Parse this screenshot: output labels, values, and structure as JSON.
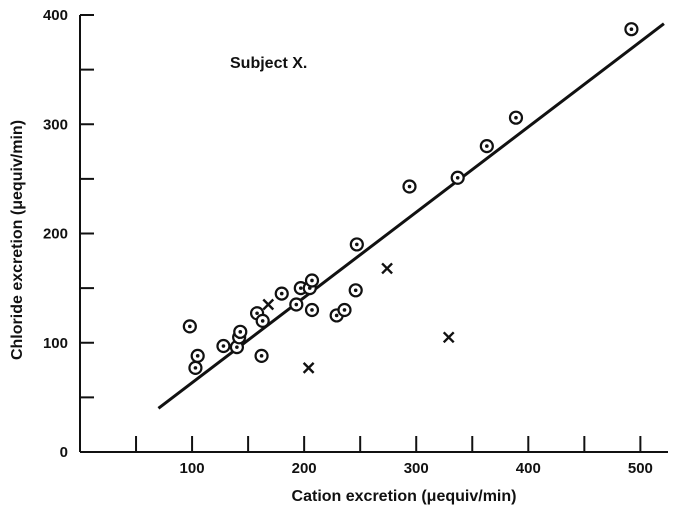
{
  "chart_data": {
    "type": "scatter",
    "title": "",
    "xlabel": "Cation excretion (μequiv/min)",
    "ylabel": "Chloride excretion (μequiv/min)",
    "annotation": "Subject X.",
    "xlim": [
      0,
      530
    ],
    "ylim": [
      0,
      400
    ],
    "x_ticks": [
      50,
      100,
      150,
      200,
      250,
      300,
      350,
      400,
      450,
      500
    ],
    "x_tick_labels": [
      "100",
      "200",
      "300",
      "400",
      "500"
    ],
    "x_tick_label_values": [
      100,
      200,
      300,
      400,
      500
    ],
    "y_ticks": [
      0,
      50,
      100,
      150,
      200,
      250,
      300,
      350,
      400
    ],
    "y_tick_labels": [
      "0",
      "100",
      "200",
      "300",
      "400"
    ],
    "y_tick_label_values": [
      0,
      100,
      200,
      300,
      400
    ],
    "grid": false,
    "series": [
      {
        "marker": "circle-dot",
        "x": [
          98,
          103,
          105,
          128,
          140,
          142,
          143,
          158,
          163,
          162,
          180,
          193,
          197,
          205,
          207,
          207,
          229,
          236,
          247,
          246,
          294,
          337,
          363,
          389,
          492
        ],
        "y": [
          115,
          77,
          88,
          97,
          96,
          105,
          110,
          127,
          120,
          88,
          145,
          135,
          150,
          150,
          157,
          130,
          125,
          130,
          190,
          148,
          243,
          251,
          280,
          306,
          387
        ]
      },
      {
        "marker": "cross",
        "x": [
          168,
          204,
          274,
          329
        ],
        "y": [
          135,
          77,
          168,
          105
        ]
      },
      {
        "type": "line",
        "x": [
          70,
          521
        ],
        "y": [
          40,
          392
        ]
      }
    ]
  }
}
